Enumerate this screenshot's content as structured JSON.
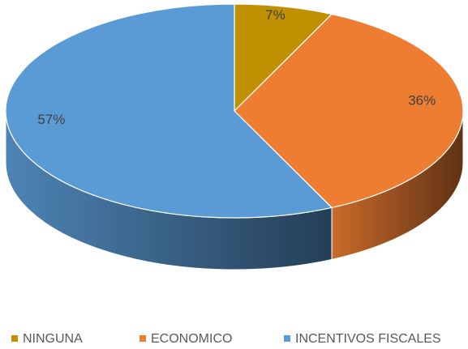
{
  "chart_data": {
    "type": "pie",
    "categories": [
      "NINGUNA",
      "ECONOMICO",
      "INCENTIVOS FISCALES"
    ],
    "values": [
      7,
      36,
      57
    ],
    "value_labels": [
      "7%",
      "36%",
      "57%"
    ],
    "colors": [
      "#bf9000",
      "#ed7d31",
      "#5b9bd5"
    ],
    "legend": "bottom"
  }
}
